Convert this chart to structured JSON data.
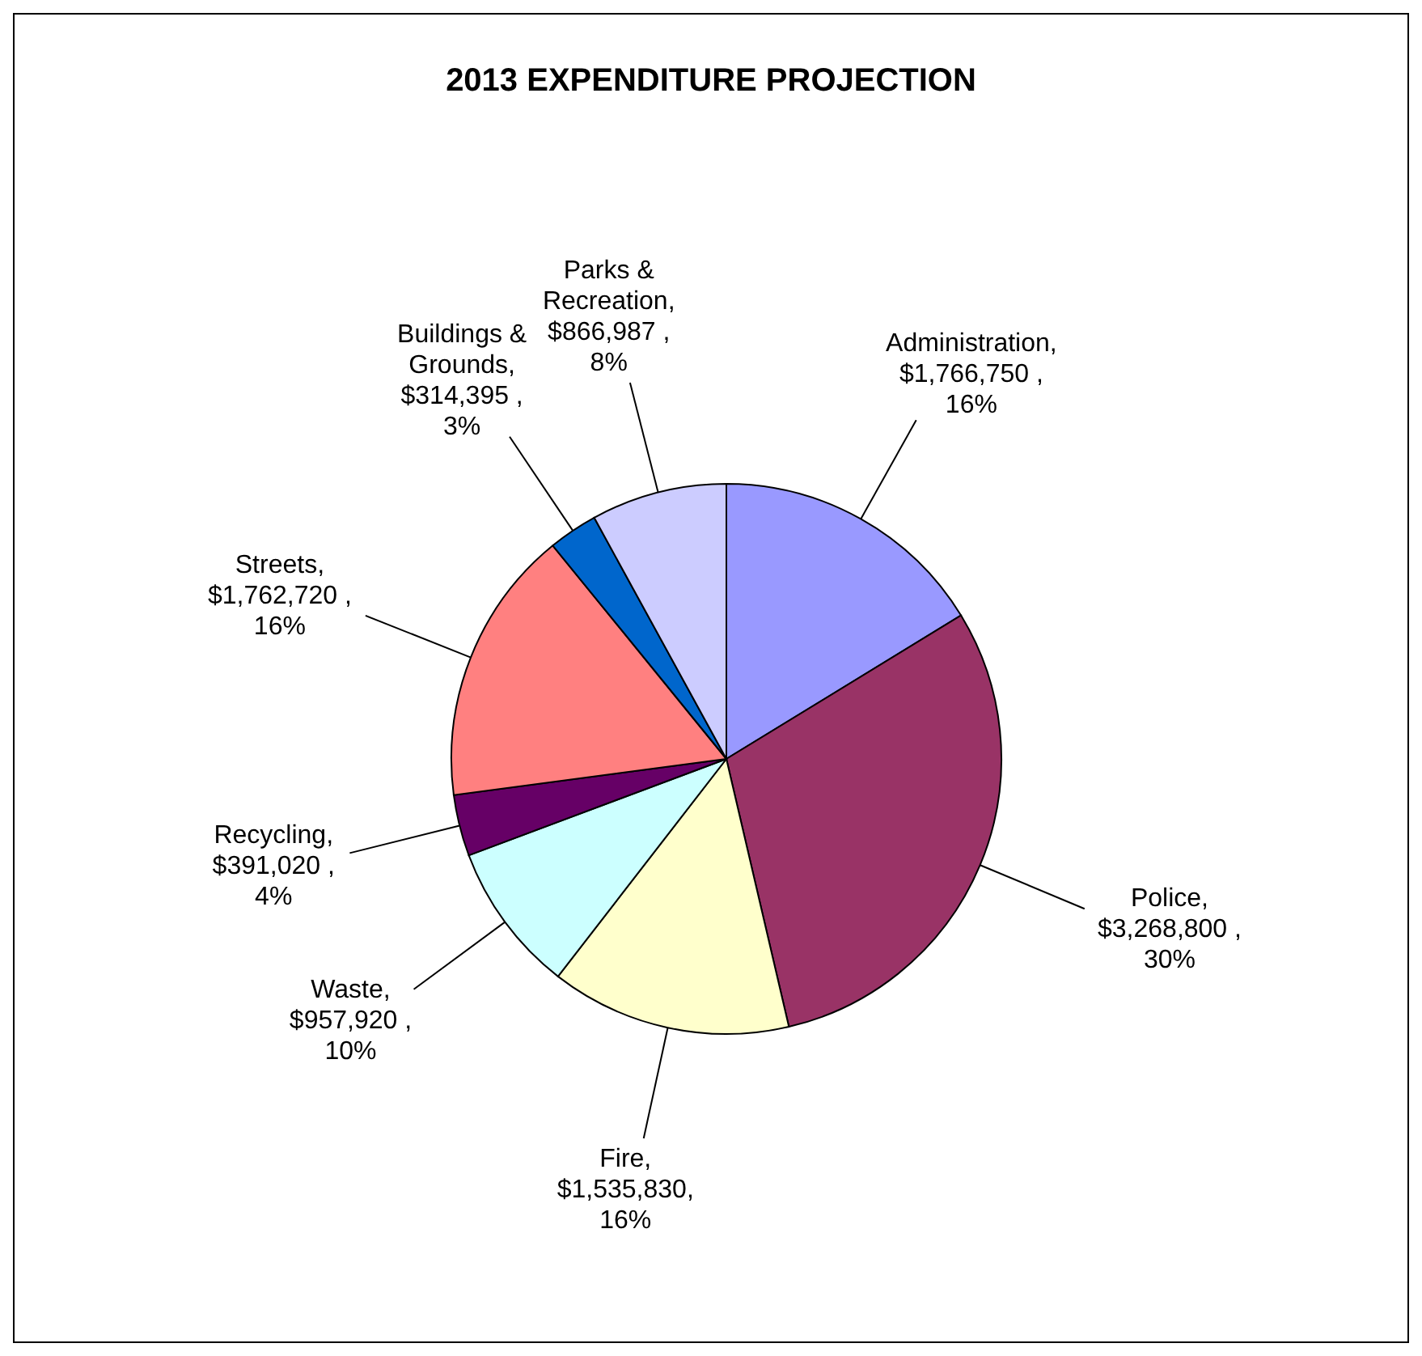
{
  "chart_data": {
    "type": "pie",
    "title": "2013 EXPENDITURE PROJECTION",
    "categories": [
      "Administration",
      "Police",
      "Fire",
      "Waste",
      "Recycling",
      "Streets",
      "Buildings & Grounds",
      "Parks & Recreation"
    ],
    "values": [
      1766750,
      3268800,
      1535830,
      957920,
      391020,
      1762720,
      314395,
      866987
    ],
    "colors": [
      "#9999ff",
      "#993366",
      "#ffffcc",
      "#ccffff",
      "#660066",
      "#ff8080",
      "#0066cc",
      "#ccccff"
    ],
    "value_labels": [
      ",\n$1,766,750 ,\n16%",
      ",\n$3,268,800 ,\n30%",
      ",\n$1,535,830,\n16%",
      ",\n$957,920 ,\n10%",
      ",\n$391,020 ,\n4%",
      ",\n$1,762,720 ,\n16%",
      ",\n$314,395 ,\n3%",
      ",\n$866,987 ,\n8%"
    ]
  }
}
